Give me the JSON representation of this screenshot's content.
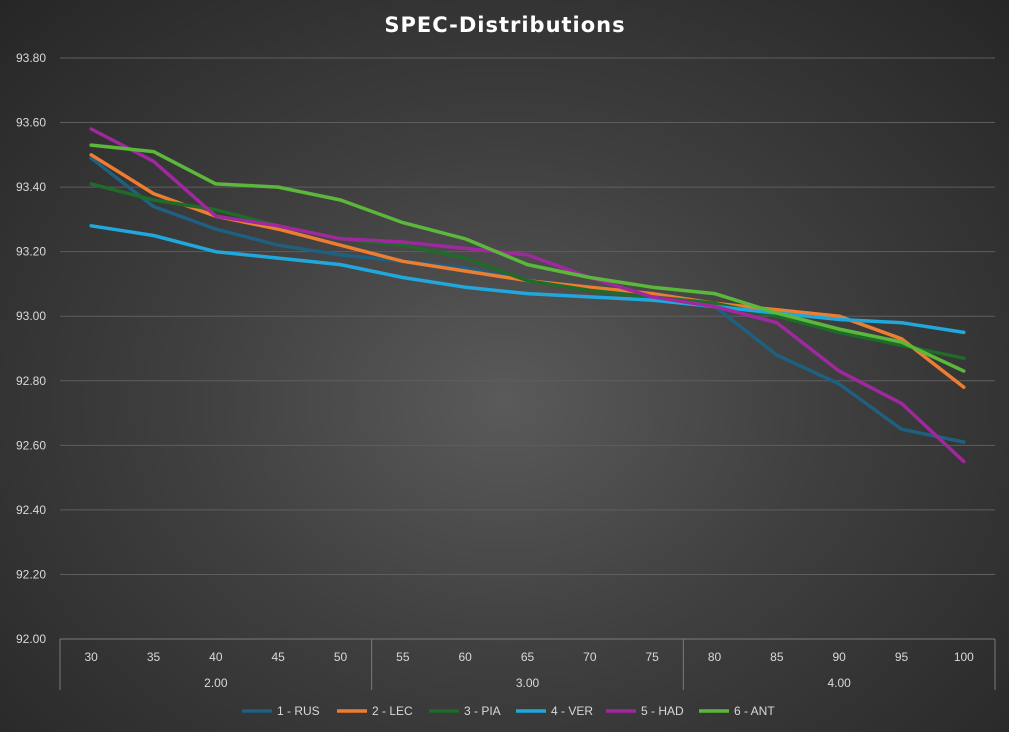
{
  "chart_data": {
    "type": "line",
    "title": "SPEC-Distributions",
    "xlabel": "",
    "ylabel": "",
    "ylim": [
      92.0,
      93.8
    ],
    "y_ticks": [
      "92.00",
      "92.20",
      "92.40",
      "92.60",
      "92.80",
      "93.00",
      "93.20",
      "93.40",
      "93.60",
      "93.80"
    ],
    "categories": [
      "30",
      "35",
      "40",
      "45",
      "50",
      "55",
      "60",
      "65",
      "70",
      "75",
      "80",
      "85",
      "90",
      "95",
      "100"
    ],
    "groups": [
      {
        "label": "2.00",
        "count": 5
      },
      {
        "label": "3.00",
        "count": 5
      },
      {
        "label": "4.00",
        "count": 5
      }
    ],
    "grid": true,
    "legend_position": "bottom",
    "series": [
      {
        "name": "1 - RUS",
        "color": "#1f5f80",
        "values": [
          93.49,
          93.34,
          93.27,
          93.22,
          93.19,
          93.17,
          93.15,
          93.11,
          93.09,
          93.06,
          93.03,
          92.88,
          92.79,
          92.65,
          92.61
        ]
      },
      {
        "name": "2 - LEC",
        "color": "#ed7d31",
        "values": [
          93.5,
          93.38,
          93.31,
          93.27,
          93.22,
          93.17,
          93.14,
          93.11,
          93.09,
          93.07,
          93.04,
          93.02,
          93.0,
          92.93,
          92.78
        ]
      },
      {
        "name": "3 - PIA",
        "color": "#1e6b2a",
        "values": [
          93.41,
          93.36,
          93.33,
          93.28,
          93.24,
          93.22,
          93.18,
          93.11,
          93.08,
          93.06,
          93.04,
          93.0,
          92.95,
          92.91,
          92.87
        ]
      },
      {
        "name": "4 - VER",
        "color": "#20a8dc",
        "values": [
          93.28,
          93.25,
          93.2,
          93.18,
          93.16,
          93.12,
          93.09,
          93.07,
          93.06,
          93.05,
          93.03,
          93.01,
          92.99,
          92.98,
          92.95
        ]
      },
      {
        "name": "5 - HAD",
        "color": "#a0289e",
        "values": [
          93.58,
          93.48,
          93.31,
          93.28,
          93.24,
          93.23,
          93.21,
          93.19,
          93.12,
          93.06,
          93.03,
          92.98,
          92.83,
          92.73,
          92.55
        ]
      },
      {
        "name": "6 - ANT",
        "color": "#5cb83a",
        "values": [
          93.53,
          93.51,
          93.41,
          93.4,
          93.36,
          93.29,
          93.24,
          93.16,
          93.12,
          93.09,
          93.07,
          93.01,
          92.96,
          92.92,
          92.83
        ]
      }
    ]
  }
}
